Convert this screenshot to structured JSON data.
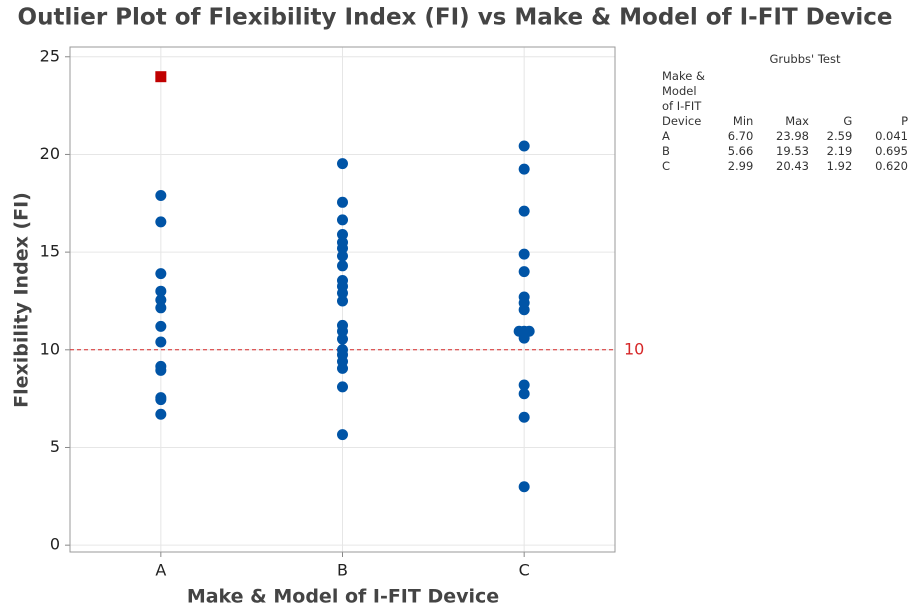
{
  "chart_data": {
    "type": "scatter",
    "title": "Outlier Plot of Flexibility Index (FI) vs Make & Model of I-FIT Device",
    "x_label": "Make & Model of I-FIT Device",
    "y_label": "Flexibility Index (FI)",
    "categories": [
      "A",
      "B",
      "C"
    ],
    "values": [
      [
        17.9,
        16.55,
        13.9,
        13.0,
        12.55,
        12.15,
        11.2,
        10.4,
        9.15,
        8.95,
        7.55,
        7.45,
        6.7
      ],
      [
        19.53,
        17.55,
        16.65,
        15.9,
        15.5,
        15.2,
        14.8,
        14.3,
        13.55,
        13.25,
        12.9,
        12.5,
        11.25,
        10.95,
        10.55,
        10.0,
        9.75,
        9.4,
        9.05,
        8.1,
        5.66
      ],
      [
        20.43,
        19.25,
        17.1,
        14.9,
        14.0,
        12.7,
        12.4,
        12.05,
        10.95,
        10.95,
        10.95,
        10.6,
        8.2,
        7.75,
        6.55,
        2.99
      ]
    ],
    "outliers": [
      [
        23.98
      ],
      [],
      []
    ],
    "color": "#0054a6",
    "outlier_color": "#c00000",
    "reference_line": 10,
    "reference_color": "#d62728",
    "ylim": [
      -0.35,
      25.5
    ],
    "yticks": [
      0,
      5,
      10,
      15,
      20,
      25
    ],
    "grid": true,
    "grubbs_test": {
      "title": "Grubbs' Test",
      "columns": [
        "Make & Model of I-FIT Device",
        "Min",
        "Max",
        "G",
        "P"
      ],
      "rows": [
        [
          "A",
          "6.70",
          "23.98",
          "2.59",
          "0.041"
        ],
        [
          "B",
          "5.66",
          "19.53",
          "2.19",
          "0.695"
        ],
        [
          "C",
          "2.99",
          "20.43",
          "1.92",
          "0.620"
        ]
      ]
    }
  }
}
